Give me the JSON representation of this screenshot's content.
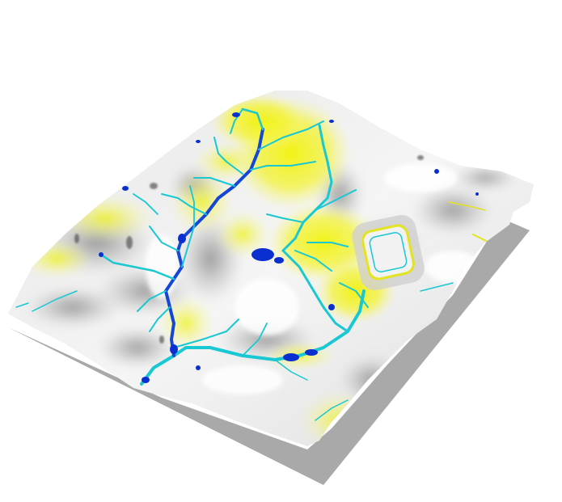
{
  "scene": {
    "description_visible_text": "",
    "colors": {
      "background": "#ffffff",
      "shadow": "#a9a9a9",
      "terrain_light": "#f4f4f4",
      "terrain_mid": "#cfcfcf",
      "terrain_dark": "#8e8e8e",
      "flow_yellow": "#f2f20a",
      "flow_yellow_pale": "#f7f79a",
      "stream_cyan": "#19c8d2",
      "stream_blue": "#1447d6",
      "pond_blue": "#0a2fd0"
    }
  }
}
